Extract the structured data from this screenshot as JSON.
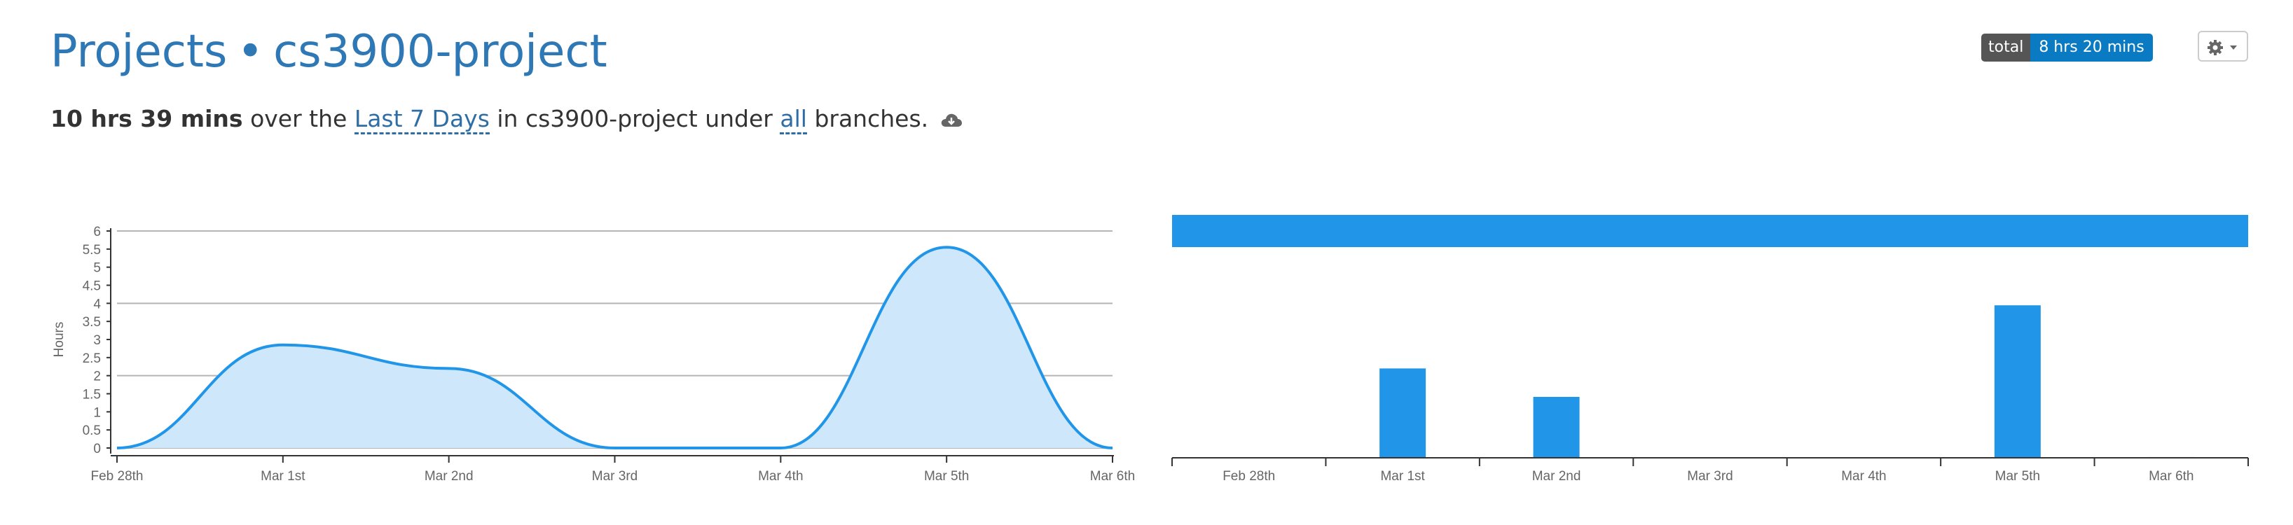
{
  "header": {
    "breadcrumb_root": "Projects",
    "separator": "•",
    "project_name": "cs3900-project"
  },
  "summary": {
    "total_time": "10 hrs 39 mins",
    "text_over_the": "over the",
    "range_label": "Last 7 Days",
    "text_in": "in cs3900-project under",
    "branch_label": "all",
    "text_branches": "branches."
  },
  "badge": {
    "key": "total",
    "value": "8 hrs 20 mins"
  },
  "colors": {
    "accent": "#2f78b6",
    "series": "#2196e8",
    "area_fill": "#cfe7fa",
    "badge_key_bg": "#555555",
    "badge_value_bg": "#0a7ac2"
  },
  "icons": {
    "settings": "gear-icon",
    "dropdown": "caret-down-icon",
    "cloud": "cloud-download-icon"
  },
  "chart_data": [
    {
      "type": "area",
      "title": "",
      "ylabel": "Hours",
      "xlabel": "",
      "ylim": [
        0,
        6
      ],
      "yticks": [
        "0",
        "0.5",
        "1",
        "1.5",
        "2",
        "2.5",
        "3",
        "3.5",
        "4",
        "4.5",
        "5",
        "5.5",
        "6"
      ],
      "categories": [
        "Feb 28th",
        "Mar 1st",
        "Mar 2nd",
        "Mar 3rd",
        "Mar 4th",
        "Mar 5th",
        "Mar 6th"
      ],
      "values": [
        0,
        2.85,
        2.2,
        0,
        0,
        5.55,
        0
      ],
      "grid": "horizontal"
    },
    {
      "type": "bar",
      "title": "",
      "categories": [
        "Feb 28th",
        "Mar 1st",
        "Mar 2nd",
        "Mar 3rd",
        "Mar 4th",
        "Mar 5th",
        "Mar 6th"
      ],
      "values": [
        0,
        2.42,
        1.65,
        0,
        0,
        4.13,
        0.02
      ],
      "ylim": [
        0,
        5.1
      ],
      "total_bar": 1
    }
  ]
}
